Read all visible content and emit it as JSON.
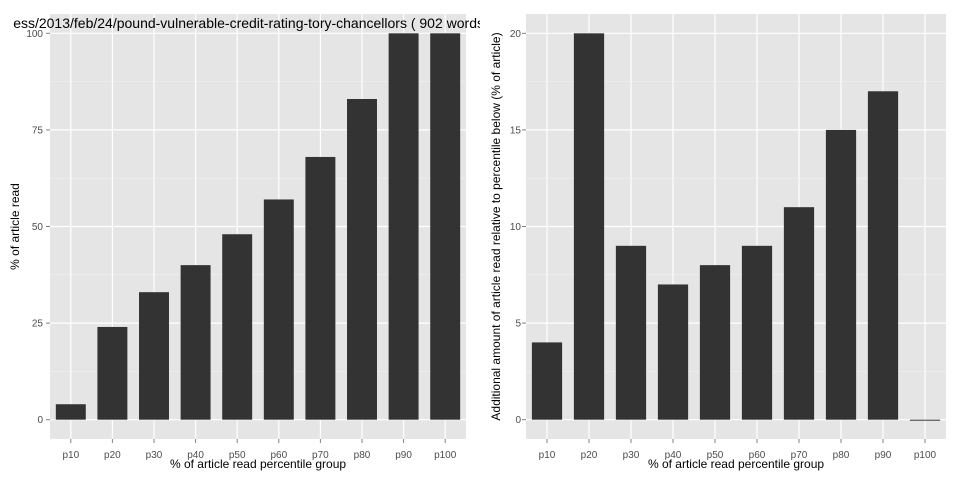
{
  "chart_data": [
    {
      "type": "bar",
      "title": "ess/2013/feb/24/pound-vulnerable-credit-rating-tory-chancellors ( 902 words",
      "xlabel": "% of article read percentile group",
      "ylabel": "% of article read",
      "categories": [
        "p10",
        "p20",
        "p30",
        "p40",
        "p50",
        "p60",
        "p70",
        "p80",
        "p90",
        "p100"
      ],
      "values": [
        4,
        24,
        33,
        40,
        48,
        57,
        68,
        83,
        100,
        100
      ],
      "ylim": [
        -5,
        105
      ],
      "yticks": [
        0,
        25,
        50,
        75,
        100
      ],
      "grid": true,
      "bar_color": "#333333",
      "panel_color": "#e5e5e5"
    },
    {
      "type": "bar",
      "title": "",
      "xlabel": "% of article read percentile group",
      "ylabel": "Additional amount of article read relative to percentile below (% of article)",
      "categories": [
        "p10",
        "p20",
        "p30",
        "p40",
        "p50",
        "p60",
        "p70",
        "p80",
        "p90",
        "p100"
      ],
      "values": [
        4,
        20,
        9,
        7,
        8,
        9,
        11,
        15,
        17,
        0
      ],
      "ylim": [
        -1,
        21
      ],
      "yticks": [
        0,
        5,
        10,
        15,
        20
      ],
      "grid": true,
      "bar_color": "#333333",
      "panel_color": "#e5e5e5"
    }
  ]
}
